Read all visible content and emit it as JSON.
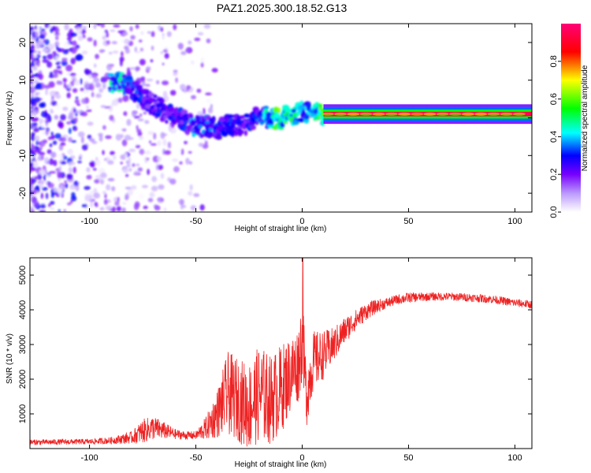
{
  "title": "PAZ1.2025.300.18.52.G13",
  "chart_data": [
    {
      "type": "heatmap",
      "xlabel": "Height of straight line (km)",
      "ylabel": "Frequency (Hz)",
      "xlim": [
        -128,
        108
      ],
      "ylim": [
        -25,
        25
      ],
      "xticks": [
        -100,
        -50,
        0,
        50,
        100
      ],
      "yticks": [
        -20,
        -10,
        0,
        10,
        20
      ],
      "colorbar": {
        "label": "Normalized spectral amplitude",
        "range": [
          0,
          1
        ],
        "ticks": [
          0.0,
          0.2,
          0.4,
          0.6,
          0.8
        ],
        "tick_labels": [
          "0.0",
          "0.2",
          "0.4",
          "0.6",
          "0.8"
        ],
        "colormap_stops": [
          "#ffffff",
          "#6600ff",
          "#0000ff",
          "#00ffff",
          "#00ff00",
          "#ffff00",
          "#ff0000",
          "#ff0066"
        ]
      },
      "ridge": {
        "x": [
          -85,
          -80,
          -75,
          -70,
          -65,
          -60,
          -55,
          -50,
          -45,
          -40,
          -35,
          -30,
          -25,
          -20,
          -15,
          -10,
          -5,
          0,
          5,
          10,
          20,
          40,
          60,
          80,
          108
        ],
        "frequency": [
          9.5,
          8,
          5,
          3.5,
          2,
          0,
          -1,
          -2.5,
          -2,
          -3,
          -2,
          -2,
          -1.5,
          1.5,
          -0.5,
          0,
          0.5,
          2,
          1,
          1,
          1,
          1,
          1,
          1,
          1
        ],
        "amplitude": [
          0.45,
          0.35,
          0.3,
          0.28,
          0.3,
          0.3,
          0.3,
          0.4,
          0.35,
          0.3,
          0.3,
          0.3,
          0.3,
          0.35,
          0.5,
          0.6,
          0.55,
          0.4,
          0.45,
          0.6,
          0.95,
          0.95,
          0.95,
          0.95,
          0.95
        ]
      }
    },
    {
      "type": "line",
      "xlabel": "Height of straight line (km)",
      "ylabel": "SNR (10 * v/v)",
      "xlim": [
        -128,
        108
      ],
      "ylim": [
        0,
        5500
      ],
      "xticks": [
        -100,
        -50,
        0,
        50,
        100
      ],
      "yticks": [
        1000,
        2000,
        3000,
        4000,
        5000
      ],
      "color": "#ee2222",
      "envelope": {
        "x": [
          -128,
          -100,
          -90,
          -80,
          -75,
          -70,
          -65,
          -60,
          -55,
          -50,
          -45,
          -40,
          -35,
          -30,
          -25,
          -20,
          -15,
          -10,
          -5,
          -2,
          0,
          2,
          5,
          10,
          15,
          20,
          25,
          30,
          35,
          40,
          45,
          50,
          60,
          70,
          80,
          90,
          100,
          108
        ],
        "mean": [
          180,
          200,
          230,
          320,
          500,
          600,
          520,
          420,
          380,
          380,
          600,
          1000,
          1600,
          1400,
          1200,
          1600,
          1400,
          1700,
          2200,
          2400,
          3200,
          1500,
          2500,
          2700,
          3000,
          3400,
          3700,
          3950,
          4100,
          4200,
          4300,
          4350,
          4380,
          4380,
          4350,
          4300,
          4200,
          4150
        ],
        "spread": [
          80,
          80,
          100,
          180,
          350,
          350,
          250,
          150,
          120,
          120,
          350,
          700,
          1200,
          1200,
          1300,
          1400,
          1300,
          1300,
          1100,
          1100,
          1300,
          900,
          900,
          700,
          500,
          400,
          300,
          250,
          200,
          150,
          150,
          150,
          120,
          120,
          120,
          120,
          120,
          120
        ]
      },
      "peak": {
        "x": 0.3,
        "y": 5500
      }
    }
  ]
}
